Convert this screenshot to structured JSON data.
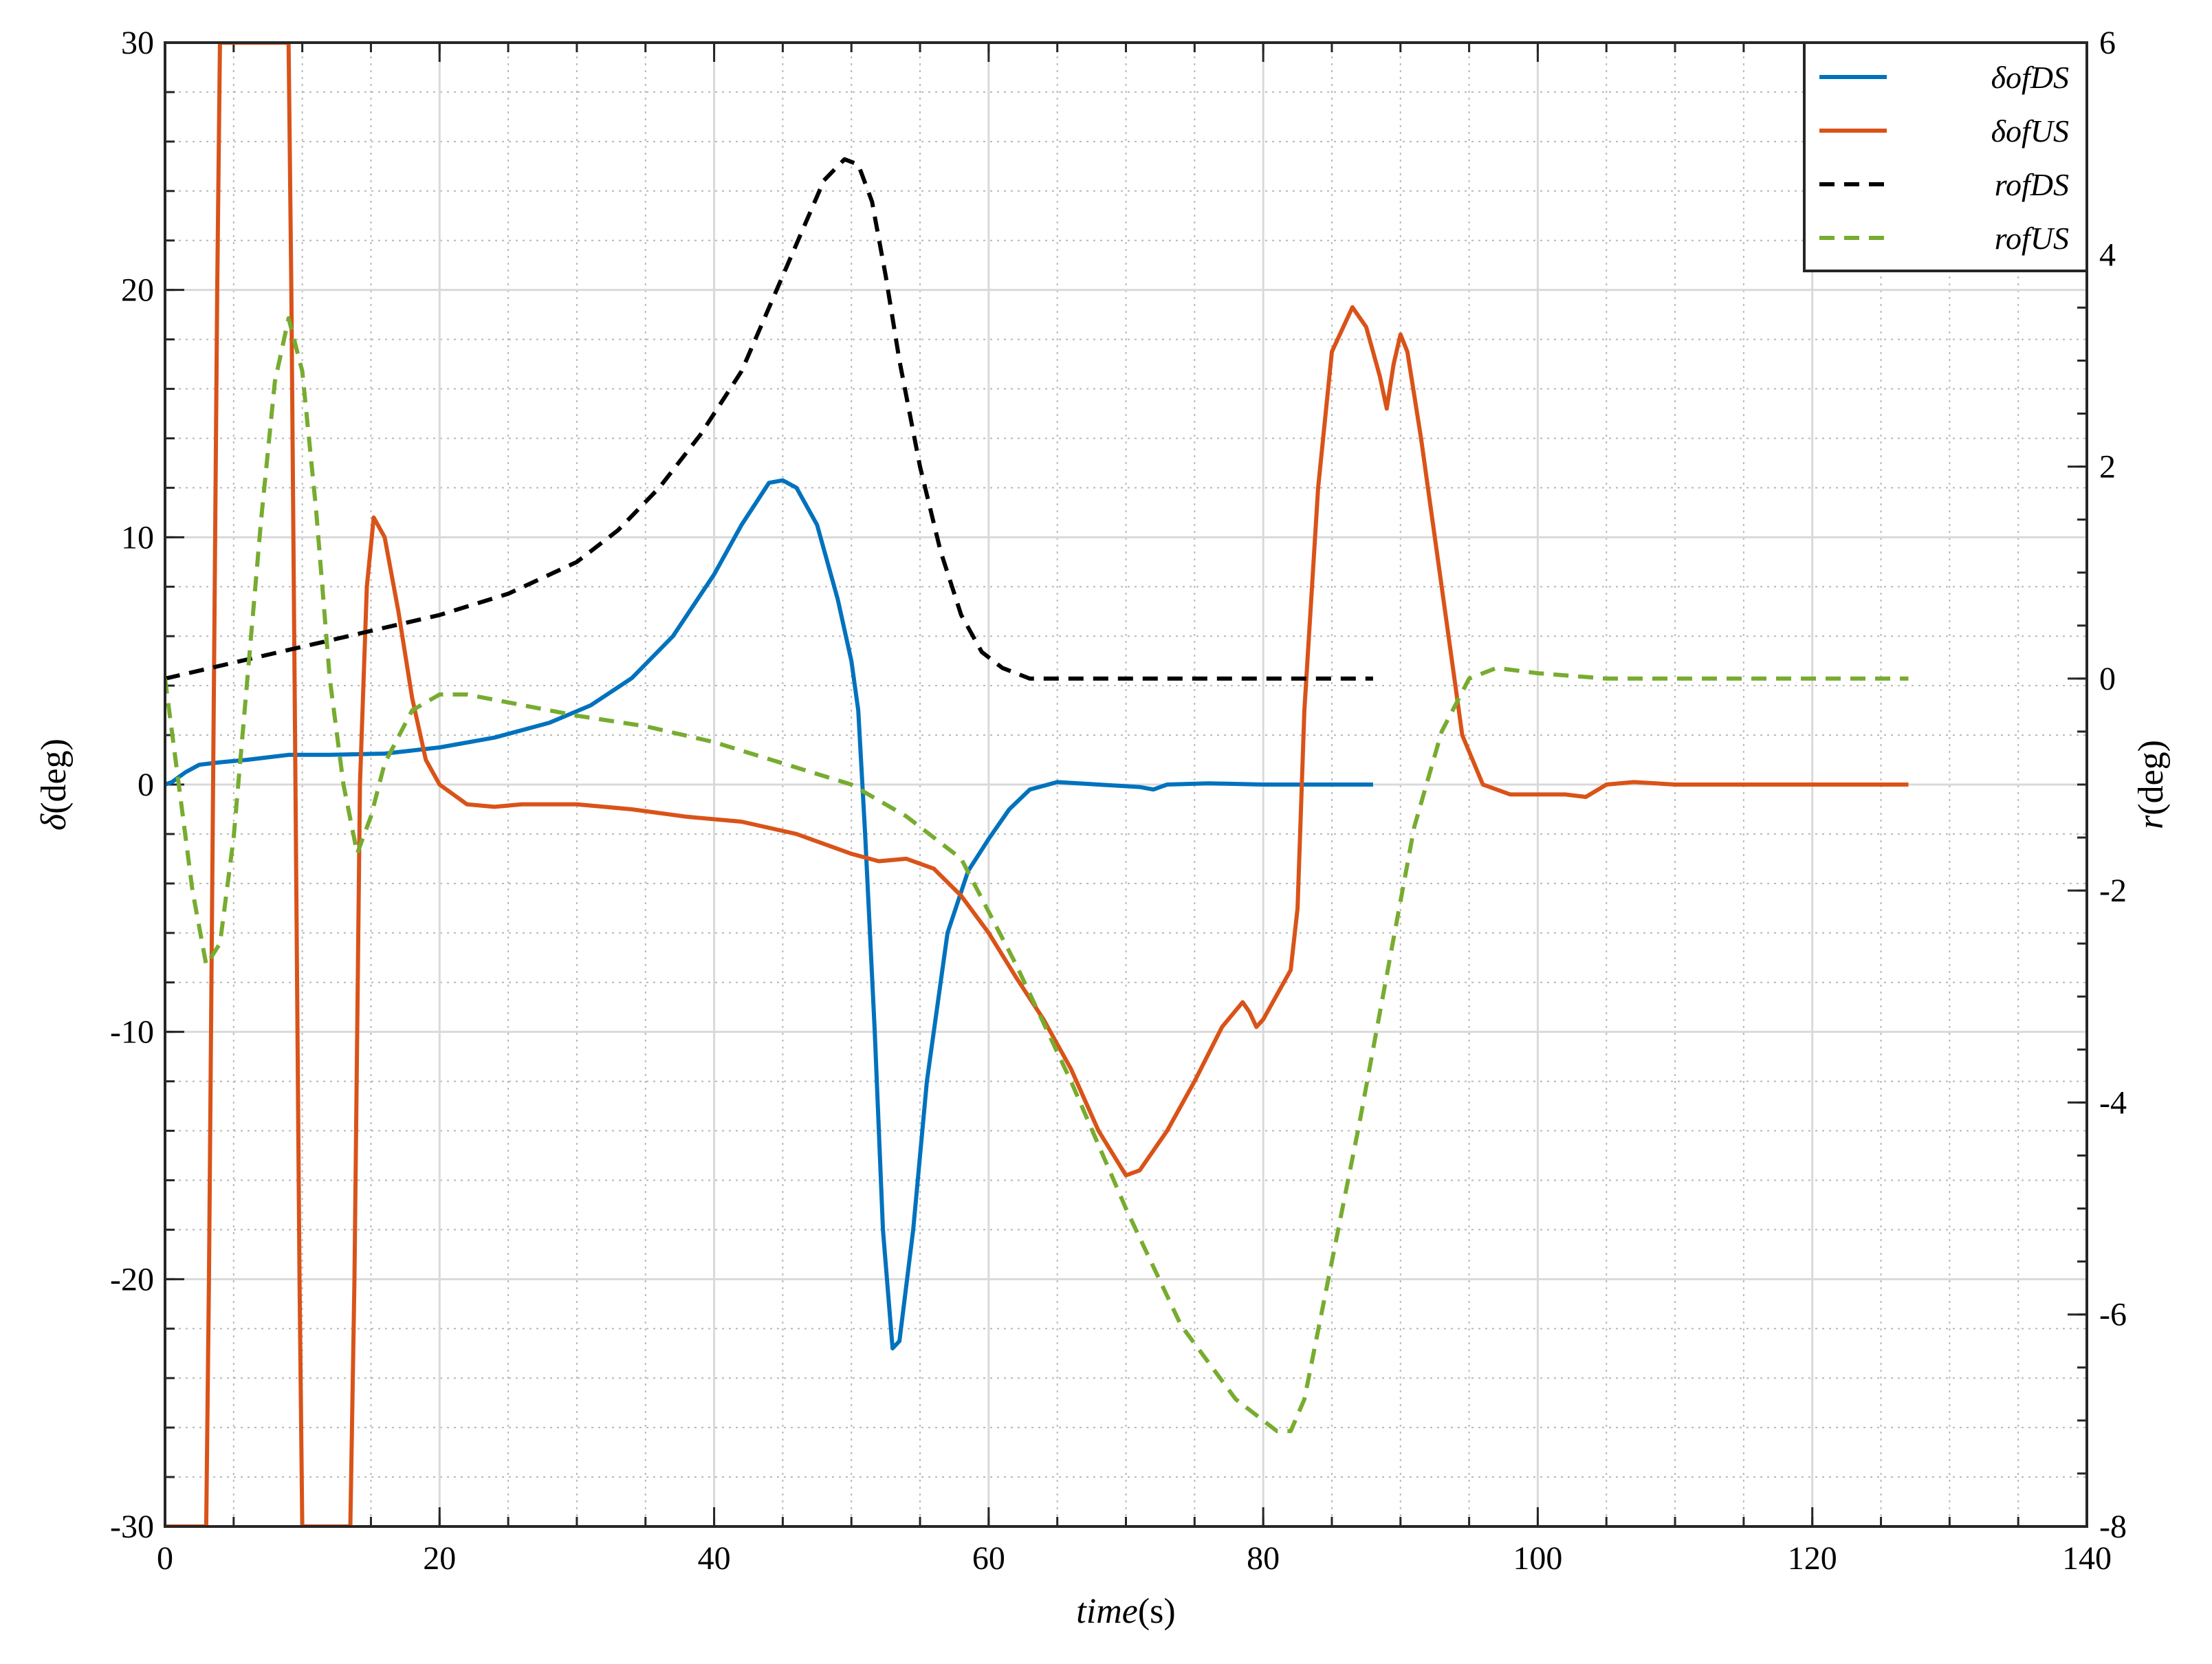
{
  "chart_data": {
    "type": "line",
    "title": "",
    "xlabel": {
      "italic": "time",
      "rest": "(s)"
    },
    "ylabel_left": {
      "italic": "δ",
      "rest": "(deg)"
    },
    "ylabel_right": {
      "italic": "r",
      "rest": "(deg)"
    },
    "xlim": [
      0,
      140
    ],
    "ylim_left": [
      -30,
      30
    ],
    "ylim_right": [
      -8,
      6
    ],
    "x_ticks": [
      0,
      20,
      40,
      60,
      80,
      100,
      120,
      140
    ],
    "x_tick_labels": [
      "0",
      "20",
      "40",
      "60",
      "80",
      "100",
      "120",
      "140"
    ],
    "y_left_ticks": [
      -30,
      -20,
      -10,
      0,
      10,
      20,
      30
    ],
    "y_left_tick_labels": [
      "-30",
      "-20",
      "-10",
      "0",
      "10",
      "20",
      "30"
    ],
    "y_right_ticks": [
      -8,
      -6,
      -4,
      -2,
      0,
      2,
      4,
      6
    ],
    "y_right_tick_labels": [
      "-8",
      "-6",
      "-4",
      "-2",
      "0",
      "2",
      "4",
      "6"
    ],
    "grid": true,
    "minor_grid": true,
    "legend_position": "top-right",
    "series": [
      {
        "name": "δofDS",
        "axis": "left",
        "color": "#0072BD",
        "style": "solid",
        "points": [
          [
            0,
            0
          ],
          [
            0.5,
            0.1
          ],
          [
            1.5,
            0.5
          ],
          [
            2.5,
            0.8
          ],
          [
            4,
            0.9
          ],
          [
            6,
            1.0
          ],
          [
            9,
            1.2
          ],
          [
            12,
            1.2
          ],
          [
            16,
            1.25
          ],
          [
            20,
            1.5
          ],
          [
            24,
            1.9
          ],
          [
            28,
            2.5
          ],
          [
            31,
            3.2
          ],
          [
            34,
            4.3
          ],
          [
            37,
            6
          ],
          [
            40,
            8.5
          ],
          [
            42,
            10.5
          ],
          [
            44,
            12.2
          ],
          [
            45,
            12.3
          ],
          [
            46,
            12
          ],
          [
            47.5,
            10.5
          ],
          [
            49,
            7.5
          ],
          [
            50,
            5
          ],
          [
            50.5,
            3
          ],
          [
            51,
            -2
          ],
          [
            51.7,
            -10
          ],
          [
            52.3,
            -18
          ],
          [
            53,
            -22.8
          ],
          [
            53.5,
            -22.5
          ],
          [
            54.5,
            -18
          ],
          [
            55.5,
            -12
          ],
          [
            57,
            -6
          ],
          [
            58.5,
            -3.5
          ],
          [
            60,
            -2.2
          ],
          [
            61.5,
            -1
          ],
          [
            63,
            -0.2
          ],
          [
            65,
            0.1
          ],
          [
            68,
            0
          ],
          [
            71,
            -0.1
          ],
          [
            72,
            -0.2
          ],
          [
            73,
            0
          ],
          [
            76,
            0.05
          ],
          [
            80,
            0
          ],
          [
            88,
            0
          ]
        ]
      },
      {
        "name": "δofUS",
        "axis": "left",
        "color": "#D95319",
        "style": "solid",
        "points": [
          [
            0,
            -30
          ],
          [
            1,
            -30
          ],
          [
            3,
            -30
          ],
          [
            3.2,
            -20
          ],
          [
            3.5,
            0
          ],
          [
            3.8,
            20
          ],
          [
            4,
            30
          ],
          [
            9,
            30
          ],
          [
            9.2,
            20
          ],
          [
            9.5,
            0
          ],
          [
            9.8,
            -20
          ],
          [
            10,
            -30
          ],
          [
            13.5,
            -30
          ],
          [
            13.8,
            -20
          ],
          [
            14.2,
            0
          ],
          [
            14.7,
            8
          ],
          [
            15.2,
            10.8
          ],
          [
            16,
            10
          ],
          [
            17,
            7
          ],
          [
            18,
            3.5
          ],
          [
            19,
            1
          ],
          [
            20,
            0
          ],
          [
            22,
            -0.8
          ],
          [
            24,
            -0.9
          ],
          [
            26,
            -0.8
          ],
          [
            30,
            -0.8
          ],
          [
            34,
            -1
          ],
          [
            38,
            -1.3
          ],
          [
            42,
            -1.5
          ],
          [
            46,
            -2
          ],
          [
            50,
            -2.8
          ],
          [
            52,
            -3.1
          ],
          [
            54,
            -3
          ],
          [
            56,
            -3.4
          ],
          [
            58,
            -4.5
          ],
          [
            60,
            -6
          ],
          [
            62,
            -7.8
          ],
          [
            64,
            -9.5
          ],
          [
            66,
            -11.5
          ],
          [
            68,
            -14
          ],
          [
            70,
            -15.8
          ],
          [
            71,
            -15.6
          ],
          [
            73,
            -14
          ],
          [
            75,
            -12
          ],
          [
            77,
            -9.8
          ],
          [
            78.5,
            -8.8
          ],
          [
            79,
            -9.2
          ],
          [
            79.5,
            -9.8
          ],
          [
            80,
            -9.5
          ],
          [
            81,
            -8.5
          ],
          [
            82,
            -7.5
          ],
          [
            82.5,
            -5
          ],
          [
            83,
            3
          ],
          [
            84,
            12
          ],
          [
            85,
            17.5
          ],
          [
            86.5,
            19.3
          ],
          [
            87.5,
            18.5
          ],
          [
            88.5,
            16.5
          ],
          [
            89,
            15.2
          ],
          [
            89.5,
            17
          ],
          [
            90,
            18.2
          ],
          [
            90.5,
            17.5
          ],
          [
            91.5,
            14
          ],
          [
            93,
            8
          ],
          [
            94.5,
            2
          ],
          [
            96,
            0
          ],
          [
            98,
            -0.4
          ],
          [
            100,
            -0.4
          ],
          [
            102,
            -0.4
          ],
          [
            103.5,
            -0.5
          ],
          [
            105,
            0
          ],
          [
            107,
            0.1
          ],
          [
            110,
            0
          ],
          [
            120,
            0
          ],
          [
            127,
            0
          ]
        ]
      },
      {
        "name": "rofDS",
        "axis": "right",
        "color": "#000000",
        "style": "dashed",
        "points": [
          [
            0,
            0
          ],
          [
            5,
            0.15
          ],
          [
            10,
            0.3
          ],
          [
            15,
            0.45
          ],
          [
            20,
            0.6
          ],
          [
            25,
            0.8
          ],
          [
            30,
            1.1
          ],
          [
            33,
            1.4
          ],
          [
            36,
            1.8
          ],
          [
            39,
            2.3
          ],
          [
            42,
            2.9
          ],
          [
            45,
            3.8
          ],
          [
            48,
            4.7
          ],
          [
            49.5,
            4.9
          ],
          [
            50.5,
            4.85
          ],
          [
            51.5,
            4.5
          ],
          [
            52.5,
            3.8
          ],
          [
            53.5,
            3
          ],
          [
            55,
            2
          ],
          [
            56.5,
            1.2
          ],
          [
            58,
            0.6
          ],
          [
            59.5,
            0.25
          ],
          [
            61,
            0.1
          ],
          [
            63,
            0
          ],
          [
            66,
            0
          ],
          [
            88,
            0
          ]
        ]
      },
      {
        "name": "rofUS",
        "axis": "right",
        "color": "#77AC30",
        "style": "dashed",
        "points": [
          [
            0,
            0
          ],
          [
            1,
            -1
          ],
          [
            2,
            -2
          ],
          [
            3,
            -2.7
          ],
          [
            4,
            -2.5
          ],
          [
            5,
            -1.5
          ],
          [
            6,
            0
          ],
          [
            7,
            1.5
          ],
          [
            8,
            2.8
          ],
          [
            9,
            3.4
          ],
          [
            10,
            2.9
          ],
          [
            11,
            1.6
          ],
          [
            12,
            0
          ],
          [
            13,
            -1
          ],
          [
            14,
            -1.65
          ],
          [
            15,
            -1.3
          ],
          [
            16,
            -0.8
          ],
          [
            18,
            -0.3
          ],
          [
            20,
            -0.15
          ],
          [
            22,
            -0.15
          ],
          [
            26,
            -0.25
          ],
          [
            30,
            -0.35
          ],
          [
            35,
            -0.45
          ],
          [
            40,
            -0.6
          ],
          [
            45,
            -0.8
          ],
          [
            50,
            -1
          ],
          [
            54,
            -1.3
          ],
          [
            58,
            -1.7
          ],
          [
            62,
            -2.7
          ],
          [
            66,
            -3.8
          ],
          [
            70,
            -5
          ],
          [
            74,
            -6.1
          ],
          [
            78,
            -6.8
          ],
          [
            81,
            -7.1
          ],
          [
            82,
            -7.1
          ],
          [
            83,
            -6.8
          ],
          [
            85,
            -5.5
          ],
          [
            87,
            -4.2
          ],
          [
            89,
            -2.8
          ],
          [
            91,
            -1.4
          ],
          [
            93,
            -0.5
          ],
          [
            95,
            0
          ],
          [
            97,
            0.1
          ],
          [
            100,
            0.05
          ],
          [
            105,
            0
          ],
          [
            115,
            0
          ],
          [
            127,
            0
          ]
        ]
      }
    ]
  }
}
